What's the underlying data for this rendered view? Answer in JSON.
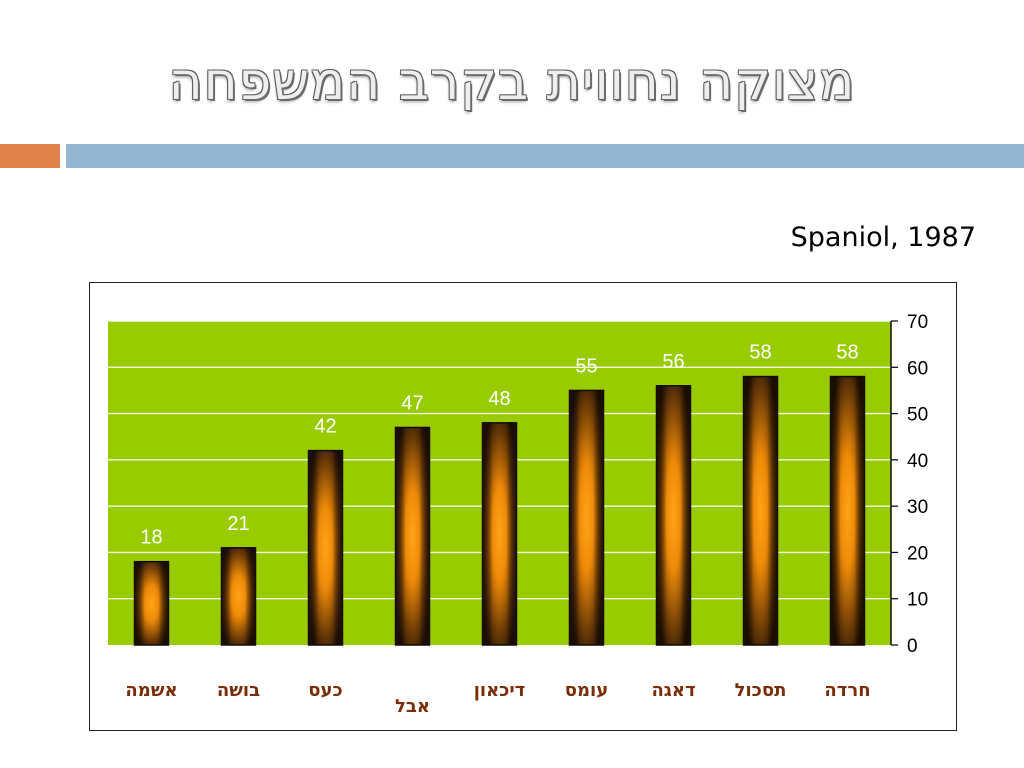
{
  "slide": {
    "title": "מצוקה נחווית בקרב המשפחה",
    "citation": "Spaniol, 1987"
  },
  "colors": {
    "plot_background": "#99cc00",
    "bar_outer": "#2a1604",
    "bar_glow": "#ff9a10",
    "accent_orange": "#e0824a",
    "accent_blue": "#94b6d2",
    "category_text": "#7a2e08"
  },
  "chart_data": {
    "type": "bar",
    "categories": [
      "אשמה",
      "בושה",
      "כעס",
      "אבל",
      "דיכאון",
      "עומס",
      "דאגה",
      "תסכול",
      "חרדה"
    ],
    "values": [
      18,
      21,
      42,
      47,
      48,
      55,
      56,
      58,
      58
    ],
    "data_labels": [
      "18",
      "21",
      "42",
      "47",
      "48",
      "55",
      "56",
      "58",
      "58"
    ],
    "ylim": [
      0,
      70
    ],
    "yticks": [
      0,
      10,
      20,
      30,
      40,
      50,
      60,
      70
    ],
    "y_axis_side": "right",
    "grid": true,
    "legend": "none"
  }
}
